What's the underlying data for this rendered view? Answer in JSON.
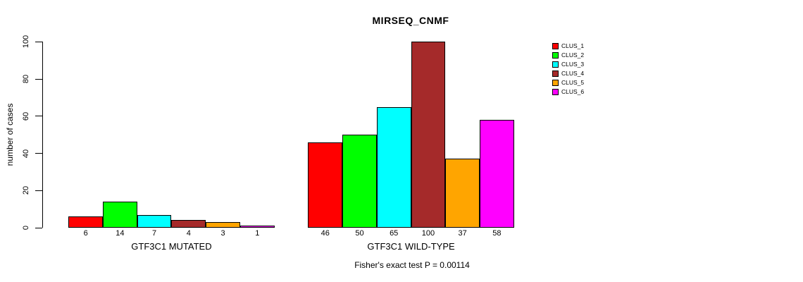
{
  "chart_data": {
    "type": "bar",
    "title": "MIRSEQ_CNMF",
    "ylabel": "number of cases",
    "xlabel": "",
    "ylim": [
      0,
      100
    ],
    "yticks": [
      0,
      20,
      40,
      60,
      80,
      100
    ],
    "grid": false,
    "legend_position": "right",
    "clusters": [
      "CLUS_1",
      "CLUS_2",
      "CLUS_3",
      "CLUS_4",
      "CLUS_5",
      "CLUS_6"
    ],
    "colors": [
      "#ff0000",
      "#00ff00",
      "#00ffff",
      "#a52a2a",
      "#ffa500",
      "#ff00ff"
    ],
    "groups": [
      {
        "label": "GTF3C1 MUTATED",
        "values": [
          6,
          14,
          7,
          4,
          3,
          1
        ]
      },
      {
        "label": "GTF3C1 WILD-TYPE",
        "values": [
          46,
          50,
          65,
          100,
          37,
          58
        ]
      }
    ],
    "annotation": "Fisher's exact test P = 0.00114"
  }
}
